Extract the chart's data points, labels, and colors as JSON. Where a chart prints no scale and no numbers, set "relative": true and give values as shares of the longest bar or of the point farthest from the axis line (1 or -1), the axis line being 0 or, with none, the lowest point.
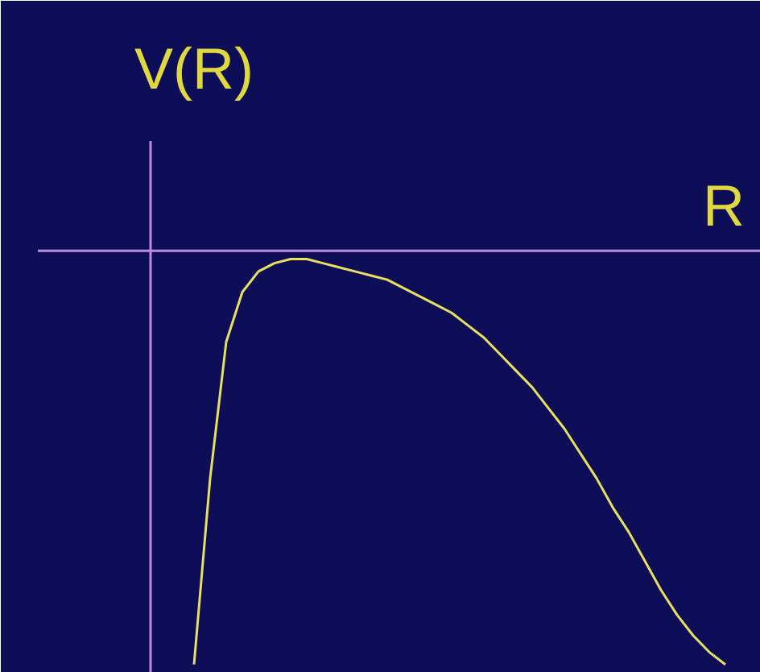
{
  "chart_data": {
    "type": "line",
    "relative": true,
    "xlabel": "R",
    "ylabel": "V(R)",
    "categories": [
      null,
      null,
      null,
      null,
      null,
      null,
      null,
      null,
      null,
      null,
      null,
      null,
      null,
      null,
      null,
      null,
      null,
      null,
      null,
      null,
      null,
      null,
      null,
      null,
      null,
      null,
      null,
      null,
      null,
      null,
      null,
      null,
      null,
      null
    ],
    "series": [
      {
        "color": "#e8e060",
        "values": [
          -1,
          -0.55,
          -0.22,
          -0.1,
          -0.05,
          -0.03,
          -0.02,
          -0.02,
          -0.03,
          -0.04,
          -0.05,
          -0.06,
          -0.07,
          -0.09,
          -0.11,
          -0.13,
          -0.15,
          -0.18,
          -0.21,
          -0.25,
          -0.29,
          -0.33,
          -0.38,
          -0.43,
          -0.49,
          -0.55,
          -0.62,
          -0.68,
          -0.75,
          -0.82,
          -0.88,
          -0.93,
          -0.97,
          -1
        ]
      }
    ]
  }
}
